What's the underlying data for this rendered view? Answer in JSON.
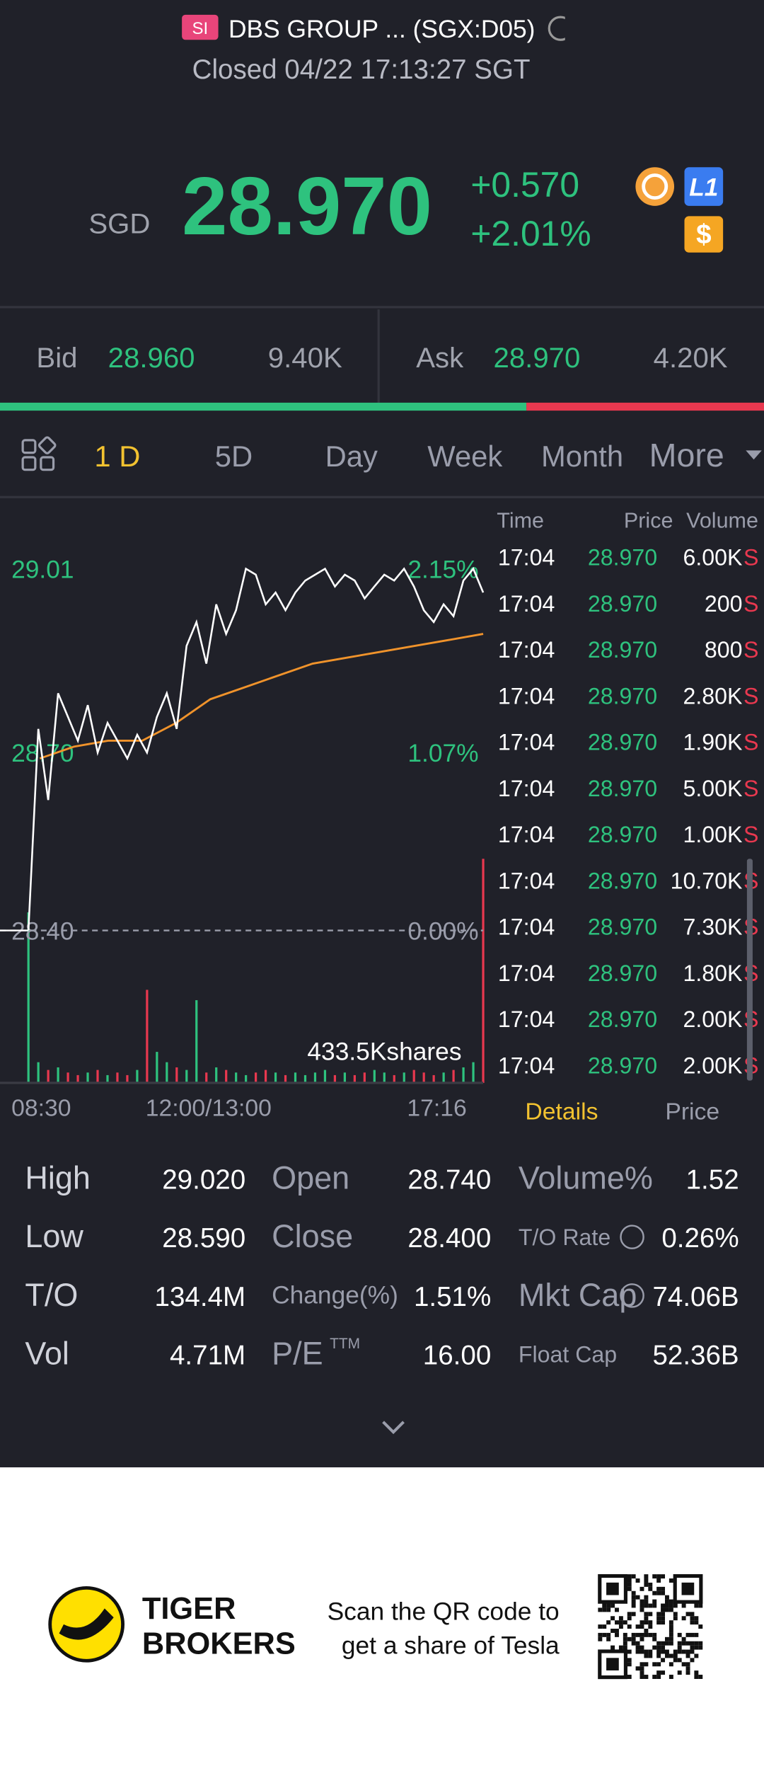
{
  "header": {
    "badge": "SI",
    "name": "DBS GROUP ... (SGX:D05)",
    "status": "Closed 04/22 17:13:27 SGT"
  },
  "quote": {
    "currency": "SGD",
    "price": "28.970",
    "change": "+0.570",
    "change_pct": "+2.01%",
    "level": "L1",
    "dollar": "$"
  },
  "bidask": {
    "bid_label": "Bid",
    "bid": "28.960",
    "bid_size": "9.40K",
    "ask_label": "Ask",
    "ask": "28.970",
    "ask_size": "4.20K"
  },
  "tabs": [
    "1 D",
    "5D",
    "Day",
    "Week",
    "Month",
    "More"
  ],
  "chart": {
    "price_ticks": [
      29.01,
      {
        "value": 28.7,
        "label": "28.70"
      },
      {
        "value": 28.4,
        "label": "28.40"
      }
    ],
    "pct_labels": [
      "2.15%",
      "1.07%",
      "0.00%"
    ],
    "volume_label": "433.5Kshares",
    "time_labels": [
      "08:30",
      "12:00/13:00",
      "17:16"
    ],
    "price_color": "#ffffff",
    "avg_color": "#f0932b",
    "up_color": "#2ec27e",
    "down_color": "#e8384f",
    "price": [
      28.4,
      28.74,
      28.62,
      28.8,
      28.76,
      28.72,
      28.78,
      28.7,
      28.75,
      28.72,
      28.69,
      28.73,
      28.7,
      28.76,
      28.8,
      28.74,
      28.88,
      28.92,
      28.85,
      28.95,
      28.9,
      28.94,
      29.01,
      29.0,
      28.95,
      28.97,
      28.94,
      28.97,
      28.99,
      29.0,
      29.01,
      28.98,
      29.0,
      28.99,
      28.96,
      28.98,
      29.0,
      28.99,
      29.01,
      28.98,
      28.94,
      28.92,
      28.95,
      28.93,
      28.99,
      29.01,
      28.97
    ],
    "avg": [
      28.69,
      28.71,
      28.72,
      28.72,
      28.75,
      28.79,
      28.81,
      28.83,
      28.85,
      28.86,
      28.87,
      28.88,
      28.89,
      28.9
    ],
    "volume": [
      330,
      40,
      25,
      30,
      20,
      15,
      20,
      25,
      15,
      20,
      15,
      25,
      180,
      60,
      40,
      30,
      25,
      160,
      20,
      30,
      25,
      20,
      15,
      20,
      25,
      20,
      15,
      20,
      15,
      20,
      25,
      15,
      20,
      15,
      20,
      25,
      20,
      15,
      20,
      25,
      20,
      15,
      20,
      25,
      30,
      40,
      433.5
    ]
  },
  "trades": {
    "headers": [
      "Time",
      "Price",
      "Volume"
    ],
    "rows": [
      [
        "17:04",
        "28.970",
        "6.00K",
        "S"
      ],
      [
        "17:04",
        "28.970",
        "200",
        "S"
      ],
      [
        "17:04",
        "28.970",
        "800",
        "S"
      ],
      [
        "17:04",
        "28.970",
        "2.80K",
        "S"
      ],
      [
        "17:04",
        "28.970",
        "1.90K",
        "S"
      ],
      [
        "17:04",
        "28.970",
        "5.00K",
        "S"
      ],
      [
        "17:04",
        "28.970",
        "1.00K",
        "S"
      ],
      [
        "17:04",
        "28.970",
        "10.70K",
        "S"
      ],
      [
        "17:04",
        "28.970",
        "7.30K",
        "S"
      ],
      [
        "17:04",
        "28.970",
        "1.80K",
        "S"
      ],
      [
        "17:04",
        "28.970",
        "2.00K",
        "S"
      ],
      [
        "17:04",
        "28.970",
        "2.00K",
        "S"
      ]
    ],
    "tabs": [
      "Details",
      "Price"
    ]
  },
  "stats": {
    "rows": [
      [
        [
          "High",
          "29.020"
        ],
        [
          "Open",
          "28.740"
        ],
        [
          "Volume%",
          "1.52"
        ]
      ],
      [
        [
          "Low",
          "28.590"
        ],
        [
          "Close",
          "28.400"
        ],
        [
          "T/O Rate",
          "0.26%"
        ]
      ],
      [
        [
          "T/O",
          "134.4M"
        ],
        [
          "Change(%)",
          "1.51%"
        ],
        [
          "Mkt Cap",
          "74.06B"
        ]
      ],
      [
        [
          "Vol",
          "4.71M"
        ],
        [
          "P/E",
          "16.00"
        ],
        [
          "Float Cap",
          "52.36B"
        ]
      ]
    ],
    "pe_sup": "TTM"
  },
  "footer": {
    "brand": [
      "TIGER",
      "BROKERS"
    ],
    "text": [
      "Scan the QR code to",
      "get a share of Tesla"
    ]
  }
}
